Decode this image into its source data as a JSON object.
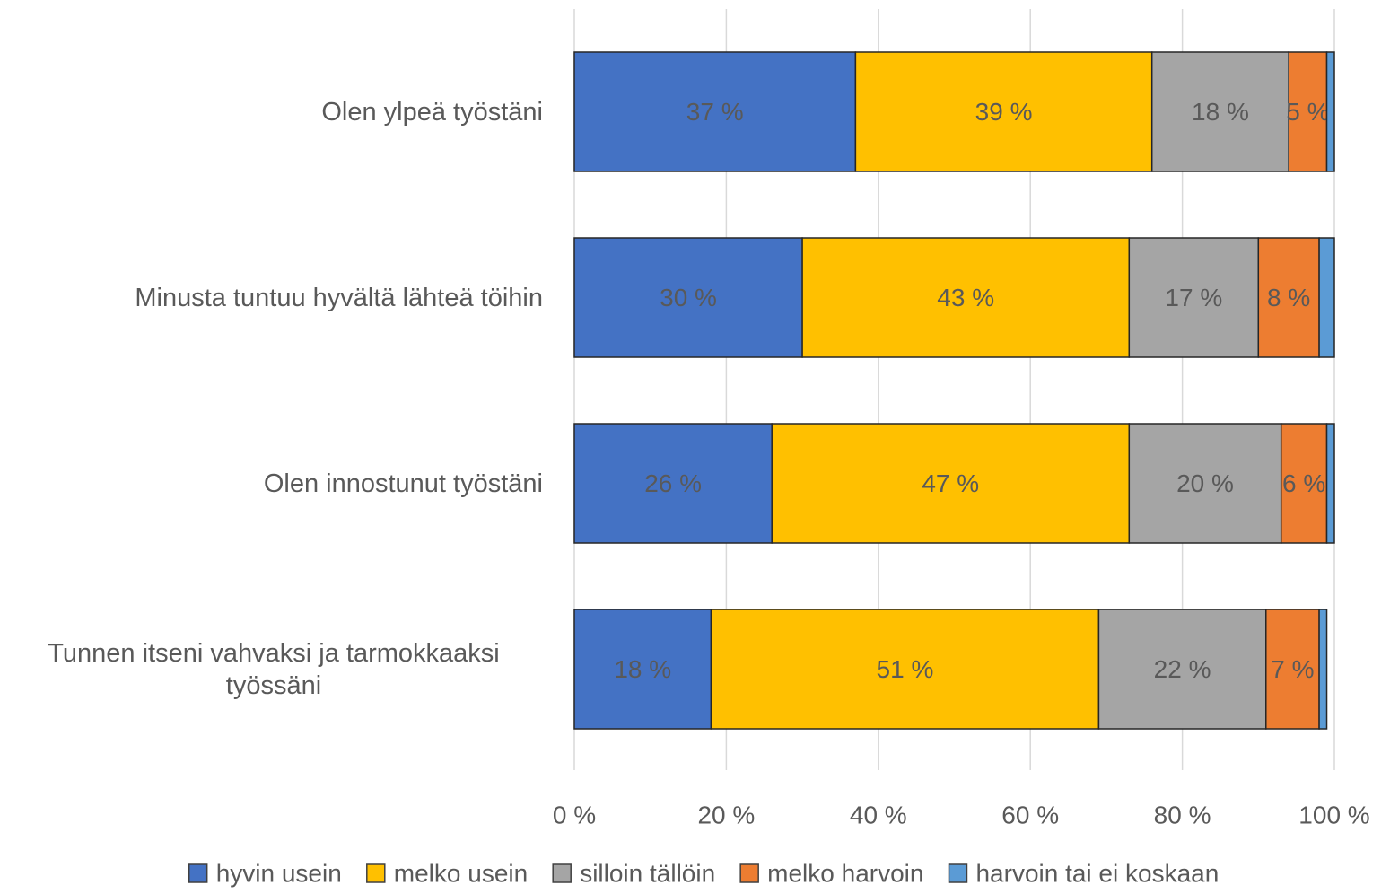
{
  "chart_data": {
    "type": "stacked_bar_horizontal",
    "categories": [
      "Olen ylpeä työstäni",
      "Minusta tuntuu hyvältä lähteä töihin",
      "Olen innostunut työstäni",
      "Tunnen itseni vahvaksi ja tarmokkaaksi työssäni"
    ],
    "series": [
      {
        "name": "hyvin usein",
        "color": "#4472c4",
        "values": [
          37,
          30,
          26,
          18
        ],
        "value_labels": [
          "37 %",
          "30 %",
          "26 %",
          "18 %"
        ]
      },
      {
        "name": "melko usein",
        "color": "#ffc000",
        "values": [
          39,
          43,
          47,
          51
        ],
        "value_labels": [
          "39 %",
          "43 %",
          "47 %",
          "51 %"
        ]
      },
      {
        "name": "silloin tällöin",
        "color": "#a5a5a5",
        "values": [
          18,
          17,
          20,
          22
        ],
        "value_labels": [
          "18 %",
          "17 %",
          "20 %",
          "22 %"
        ]
      },
      {
        "name": "melko harvoin",
        "color": "#ed7d31",
        "values": [
          5,
          8,
          6,
          7
        ],
        "value_labels": [
          "5 %",
          "8 %",
          "6 %",
          "7 %"
        ]
      },
      {
        "name": "harvoin tai ei koskaan",
        "color": "#5b9bd5",
        "values": [
          1,
          2,
          1,
          1
        ]
      }
    ],
    "xlim": [
      0,
      100
    ],
    "xticks": [
      {
        "value": 0,
        "label": "0 %"
      },
      {
        "value": 20,
        "label": "20 %"
      },
      {
        "value": 40,
        "label": "40 %"
      },
      {
        "value": 60,
        "label": "60 %"
      },
      {
        "value": 80,
        "label": "80 %"
      },
      {
        "value": 100,
        "label": "100 %"
      }
    ],
    "grid": true,
    "legend": "bottom"
  }
}
